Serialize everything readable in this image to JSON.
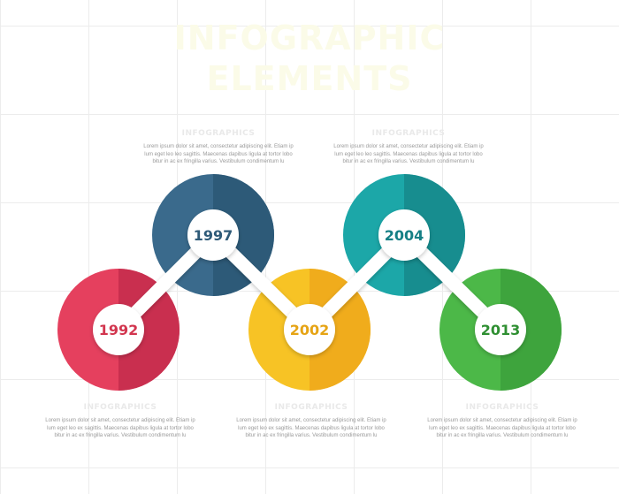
{
  "title": {
    "line1": "INFOGRAPHIC",
    "line2": "ELEMENTS"
  },
  "milestones": [
    {
      "year": "1992",
      "color": "#e5405e",
      "shade": "#c92f4f",
      "text_color": "#d2364f"
    },
    {
      "year": "1997",
      "color": "#3a6a8c",
      "shade": "#2d5a78",
      "text_color": "#2e5a78"
    },
    {
      "year": "2002",
      "color": "#f7c325",
      "shade": "#f0ac1c",
      "text_color": "#e6a415"
    },
    {
      "year": "2004",
      "color": "#1ca7a8",
      "shade": "#178d8f",
      "text_color": "#157f85"
    },
    {
      "year": "2013",
      "color": "#4cb848",
      "shade": "#3ea43d",
      "text_color": "#2f8f32"
    }
  ],
  "text_blocks": {
    "block_1997": {
      "heading": "INFOGRAPHICS",
      "lines": [
        "Lorem ipsum dolor sit amet, consectetur adipiscing elit. Etiam ip",
        "lum eget leo leo sagittis. Maecenas dapibus ligula at tortor lobo",
        "bitur in ac ex fringilla varius. Vestibulum condimentum lu"
      ]
    },
    "block_2004": {
      "heading": "INFOGRAPHICS",
      "lines": [
        "Lorem ipsum dolor sit amet, consectetur adipiscing elit. Etiam ip",
        "lum eget leo leo sagittis. Maecenas dapibus ligula at tortor lobo",
        "bitur in ac ex fringilla varius. Vestibulum condimentum lu"
      ]
    },
    "block_1992": {
      "heading": "INFOGRAPHICS",
      "lines": [
        "Lorem ipsum dolor sit amet, consectetur adipiscing elit. Etiam ip",
        "lum eget leo ex sagittis. Maecenas dapibus ligula at tortor lobo",
        "bitur in ac ex fringilla varius. Vestibulum condimentum lu"
      ]
    },
    "block_2002": {
      "heading": "INFOGRAPHICS",
      "lines": [
        "Lorem ipsum dolor sit amet, consectetur adipiscing elit. Etiam ip",
        "lum eget leo ex sagittis. Maecenas dapibus ligula at tortor lobo",
        "bitur in ac ex fringilla varius. Vestibulum condimentum lu"
      ]
    },
    "block_2013": {
      "heading": "INFOGRAPHICS",
      "lines": [
        "Lorem ipsum dolor sit amet, consectetur adipiscing elit. Etiam ip",
        "lum eget leo ex sagittis. Maecenas dapibus ligula at tortor lobo",
        "bitur in ac ex fringilla varius. Vestibulum condimentum lu"
      ]
    }
  }
}
